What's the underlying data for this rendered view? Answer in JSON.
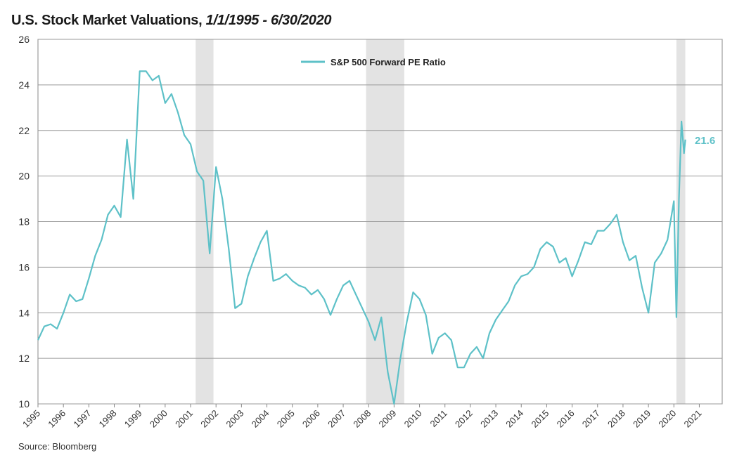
{
  "title": {
    "main": "U.S. Stock Market Valuations,",
    "period": "1/1/1995 - 6/30/2020"
  },
  "source": "Source: Bloomberg",
  "colors": {
    "series": "#5ec1c8",
    "recession": "#e3e3e3",
    "grid": "#9a9a9a",
    "axis": "#888888"
  },
  "chart_data": {
    "type": "line",
    "ylim": [
      10,
      26
    ],
    "yticks": [
      10,
      12,
      14,
      16,
      18,
      20,
      22,
      24,
      26
    ],
    "xlim": [
      1995,
      2021.9
    ],
    "xticks": [
      "1995",
      "1996",
      "1997",
      "1998",
      "1999",
      "2000",
      "2001",
      "2002",
      "2003",
      "2004",
      "2005",
      "2006",
      "2007",
      "2008",
      "2009",
      "2010",
      "2011",
      "2012",
      "2013",
      "2014",
      "2015",
      "2016",
      "2017",
      "2018",
      "2019",
      "2020",
      "2021"
    ],
    "legend": {
      "label": "S&P 500 Forward PE Ratio",
      "placement": "top-center"
    },
    "recessions": [
      [
        2001.2,
        2001.9
      ],
      [
        2007.9,
        2009.4
      ],
      [
        2020.1,
        2020.45
      ]
    ],
    "end_label": "21.6",
    "series": [
      {
        "name": "S&P 500 Forward PE Ratio",
        "x": [
          1995.0,
          1995.25,
          1995.5,
          1995.75,
          1996.0,
          1996.25,
          1996.5,
          1996.75,
          1997.0,
          1997.25,
          1997.5,
          1997.75,
          1998.0,
          1998.25,
          1998.5,
          1998.75,
          1999.0,
          1999.25,
          1999.5,
          1999.75,
          2000.0,
          2000.25,
          2000.5,
          2000.75,
          2001.0,
          2001.25,
          2001.5,
          2001.75,
          2002.0,
          2002.25,
          2002.5,
          2002.75,
          2003.0,
          2003.25,
          2003.5,
          2003.75,
          2004.0,
          2004.25,
          2004.5,
          2004.75,
          2005.0,
          2005.25,
          2005.5,
          2005.75,
          2006.0,
          2006.25,
          2006.5,
          2006.75,
          2007.0,
          2007.25,
          2007.5,
          2007.75,
          2008.0,
          2008.25,
          2008.5,
          2008.75,
          2009.0,
          2009.25,
          2009.5,
          2009.75,
          2010.0,
          2010.25,
          2010.5,
          2010.75,
          2011.0,
          2011.25,
          2011.5,
          2011.75,
          2012.0,
          2012.25,
          2012.5,
          2012.75,
          2013.0,
          2013.25,
          2013.5,
          2013.75,
          2014.0,
          2014.25,
          2014.5,
          2014.75,
          2015.0,
          2015.25,
          2015.5,
          2015.75,
          2016.0,
          2016.25,
          2016.5,
          2016.75,
          2017.0,
          2017.25,
          2017.5,
          2017.75,
          2018.0,
          2018.25,
          2018.5,
          2018.75,
          2019.0,
          2019.25,
          2019.5,
          2019.75,
          2020.0,
          2020.1,
          2020.2,
          2020.3,
          2020.4,
          2020.45
        ],
        "values": [
          12.8,
          13.4,
          13.5,
          13.3,
          14.0,
          14.8,
          14.5,
          14.6,
          15.5,
          16.5,
          17.2,
          18.3,
          18.7,
          18.2,
          21.6,
          19.0,
          24.6,
          24.6,
          24.2,
          24.4,
          23.2,
          23.6,
          22.8,
          21.8,
          21.4,
          20.2,
          19.8,
          16.6,
          20.4,
          19.0,
          16.8,
          14.2,
          14.4,
          15.6,
          16.4,
          17.1,
          17.6,
          15.4,
          15.5,
          15.7,
          15.4,
          15.2,
          15.1,
          14.8,
          15.0,
          14.6,
          13.9,
          14.6,
          15.2,
          15.4,
          14.8,
          14.2,
          13.6,
          12.8,
          13.8,
          11.4,
          10.0,
          12.0,
          13.6,
          14.9,
          14.6,
          13.9,
          12.2,
          12.9,
          13.1,
          12.8,
          11.6,
          11.6,
          12.2,
          12.5,
          12.0,
          13.1,
          13.7,
          14.1,
          14.5,
          15.2,
          15.6,
          15.7,
          16.0,
          16.8,
          17.1,
          16.9,
          16.2,
          16.4,
          15.6,
          16.3,
          17.1,
          17.0,
          17.6,
          17.6,
          17.9,
          18.3,
          17.1,
          16.3,
          16.5,
          15.1,
          14.0,
          16.2,
          16.6,
          17.2,
          18.9,
          13.8,
          19.0,
          22.4,
          21.0,
          21.6
        ]
      }
    ]
  }
}
